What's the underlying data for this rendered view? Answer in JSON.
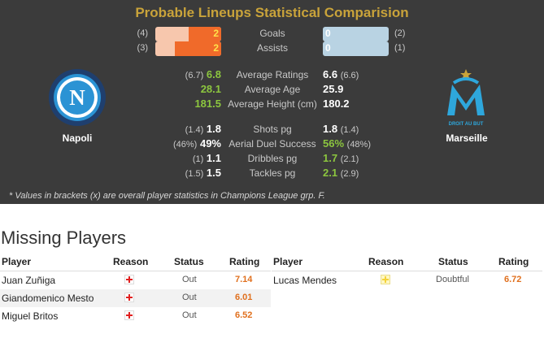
{
  "title": "Probable Lineups Statistical Comparision",
  "home_team": {
    "name": "Napoli",
    "logo_icon": "napoli-crest-icon"
  },
  "away_team": {
    "name": "Marseille",
    "logo_icon": "marseille-crest-icon",
    "crest_text": "DROIT AU BUT"
  },
  "bars": [
    {
      "label": "Goals",
      "home_bracket": "(4)",
      "home_value": "2",
      "home_fill_pct": 50,
      "away_value": "0",
      "away_bracket": "(2)"
    },
    {
      "label": "Assists",
      "home_bracket": "(3)",
      "home_value": "2",
      "home_fill_pct": 70,
      "away_value": "0",
      "away_bracket": "(1)"
    }
  ],
  "stats": [
    {
      "label": "Average Ratings",
      "home_bracket": "(6.7)",
      "home_value": "6.8",
      "home_win": true,
      "away_value": "6.6",
      "away_bracket": "(6.6)",
      "away_win": false
    },
    {
      "label": "Average Age",
      "home_bracket": "",
      "home_value": "28.1",
      "home_win": true,
      "away_value": "25.9",
      "away_bracket": "",
      "away_win": false
    },
    {
      "label": "Average Height (cm)",
      "home_bracket": "",
      "home_value": "181.5",
      "home_win": true,
      "away_value": "180.2",
      "away_bracket": "",
      "away_win": false
    },
    {
      "label": "Shots pg",
      "home_bracket": "(1.4)",
      "home_value": "1.8",
      "home_win": false,
      "away_value": "1.8",
      "away_bracket": "(1.4)",
      "away_win": false
    },
    {
      "label": "Aerial Duel Success",
      "home_bracket": "(46%)",
      "home_value": "49%",
      "home_win": false,
      "away_value": "56%",
      "away_bracket": "(48%)",
      "away_win": true
    },
    {
      "label": "Dribbles pg",
      "home_bracket": "(1)",
      "home_value": "1.1",
      "home_win": false,
      "away_value": "1.7",
      "away_bracket": "(2.1)",
      "away_win": true
    },
    {
      "label": "Tackles pg",
      "home_bracket": "(1.5)",
      "home_value": "1.5",
      "home_win": false,
      "away_value": "2.1",
      "away_bracket": "(2.9)",
      "away_win": true
    }
  ],
  "footnote": "* Values in brackets (x) are overall player statistics in Champions League grp. F.",
  "missing": {
    "title": "Missing Players",
    "headers": {
      "player": "Player",
      "reason": "Reason",
      "status": "Status",
      "rating": "Rating"
    },
    "home": [
      {
        "player": "Juan Zuñiga",
        "reason_icon": "injury-cross-icon",
        "status": "Out",
        "rating": "7.14"
      },
      {
        "player": "Giandomenico Mesto",
        "reason_icon": "injury-cross-icon",
        "status": "Out",
        "rating": "6.01"
      },
      {
        "player": "Miguel Britos",
        "reason_icon": "injury-cross-icon",
        "status": "Out",
        "rating": "6.52"
      }
    ],
    "away": [
      {
        "player": "Lucas Mendes",
        "reason_icon": "doubtful-cross-icon",
        "status": "Doubtful",
        "rating": "6.72"
      }
    ]
  },
  "colors": {
    "panel_bg": "#3b3b3b",
    "title": "#c9a33a",
    "win": "#8cc63f",
    "home_bar": "#f06a2a",
    "away_bar": "#b9d3e3",
    "rating": "#e0701e"
  }
}
